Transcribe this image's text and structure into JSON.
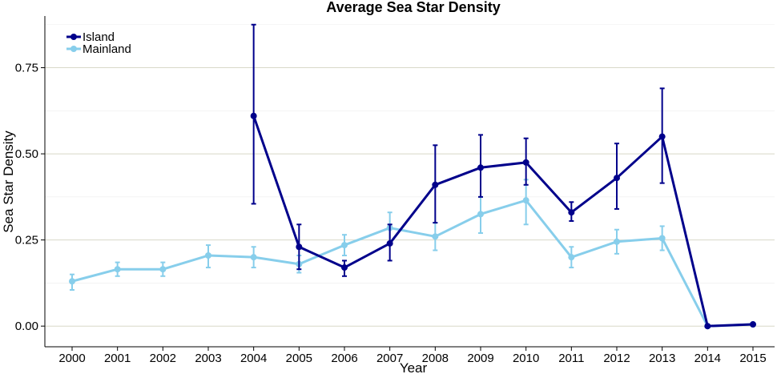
{
  "chart_data": {
    "type": "line",
    "title": "Average Sea Star Density",
    "xlabel": "Year",
    "ylabel": "Sea Star Density",
    "x": [
      "2000",
      "2001",
      "2002",
      "2003",
      "2004",
      "2005",
      "2006",
      "2007",
      "2008",
      "2009",
      "2010",
      "2011",
      "2012",
      "2013",
      "2014",
      "2015"
    ],
    "ylim": [
      -0.06,
      0.9
    ],
    "yticks": [
      0.0,
      0.25,
      0.5,
      0.75
    ],
    "ytick_labels": [
      "0.00",
      "0.25",
      "0.50",
      "0.75"
    ],
    "grid": true,
    "legend_position": "top-left",
    "series": [
      {
        "name": "Island",
        "color": "#00008b",
        "values": [
          null,
          null,
          null,
          null,
          0.61,
          0.23,
          0.17,
          0.24,
          0.41,
          0.46,
          0.475,
          0.33,
          0.43,
          0.55,
          0.0,
          0.005
        ],
        "err_low": [
          null,
          null,
          null,
          null,
          0.355,
          0.165,
          0.145,
          0.19,
          0.3,
          0.375,
          0.41,
          0.305,
          0.34,
          0.415,
          0.0,
          0.002
        ],
        "err_high": [
          null,
          null,
          null,
          null,
          0.875,
          0.295,
          0.19,
          0.295,
          0.525,
          0.555,
          0.545,
          0.36,
          0.53,
          0.69,
          0.0,
          0.009
        ]
      },
      {
        "name": "Mainland",
        "color": "#87ceeb",
        "values": [
          0.13,
          0.165,
          0.165,
          0.205,
          0.2,
          0.18,
          0.235,
          0.285,
          0.26,
          0.325,
          0.365,
          0.2,
          0.245,
          0.255,
          0.0,
          0.005
        ],
        "err_low": [
          0.105,
          0.145,
          0.145,
          0.17,
          0.17,
          0.155,
          0.205,
          0.24,
          0.22,
          0.27,
          0.295,
          0.17,
          0.21,
          0.22,
          0.0,
          0.002
        ],
        "err_high": [
          0.15,
          0.185,
          0.185,
          0.235,
          0.23,
          0.205,
          0.265,
          0.33,
          0.3,
          0.375,
          0.425,
          0.23,
          0.28,
          0.29,
          0.0,
          0.009
        ]
      }
    ]
  }
}
